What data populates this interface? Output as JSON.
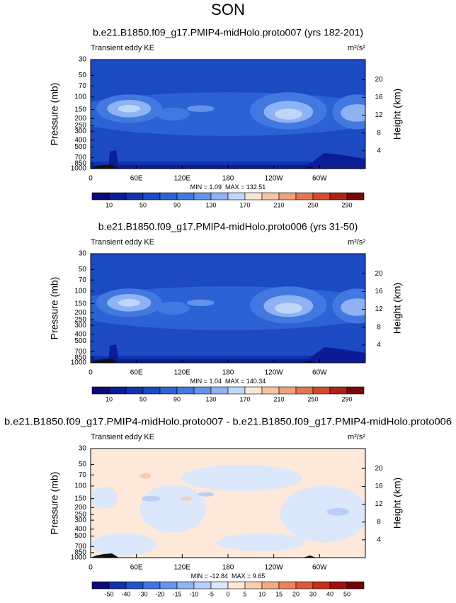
{
  "title": "SON",
  "chart_data": [
    {
      "type": "contour",
      "title": "b.e21.B1850.f09_g17.PMIP4-midHolo.proto007 (yrs 182-201)",
      "subtitle": "Transient eddy KE",
      "units": "m²/s²",
      "ylabel": "Pressure (mb)",
      "y2label": "Height (km)",
      "log_y": true,
      "ylim": [
        1000,
        30
      ],
      "yticks": [
        30,
        50,
        70,
        100,
        150,
        200,
        250,
        300,
        400,
        500,
        700,
        850,
        1000
      ],
      "y2lim": [
        0,
        24.5
      ],
      "y2ticks": [
        4,
        8,
        12,
        16,
        20
      ],
      "xlim": [
        0,
        360
      ],
      "xticks": [
        0,
        {
          "value": 60,
          "label": "60E"
        },
        {
          "value": 120,
          "label": "120E"
        },
        180,
        {
          "value": 240,
          "label": "120W"
        },
        {
          "value": 300,
          "label": "60W"
        }
      ],
      "min_label": "MIN =",
      "min": 1.09,
      "max_label": "MAX =",
      "max": 132.51,
      "colorbar_ticks": [
        10,
        50,
        90,
        130,
        170,
        210,
        250,
        290
      ],
      "colorbar_colors": [
        "#0b0b7a",
        "#0c1c96",
        "#1232ad",
        "#1c4ac2",
        "#2c62d4",
        "#4279e0",
        "#6393ea",
        "#8eb2f3",
        "#c0d6f9",
        "#fbe6d6",
        "#f6c4a2",
        "#f0a07a",
        "#e57550",
        "#d44a2e",
        "#b02218",
        "#7a0808"
      ]
    },
    {
      "type": "contour",
      "title": "b.e21.B1850.f09_g17.PMIP4-midHolo.proto006 (yrs 31-50)",
      "subtitle": "Transient eddy KE",
      "units": "m²/s²",
      "ylabel": "Pressure (mb)",
      "y2label": "Height (km)",
      "log_y": true,
      "ylim": [
        1000,
        30
      ],
      "yticks": [
        30,
        50,
        70,
        100,
        150,
        200,
        250,
        300,
        400,
        500,
        700,
        850,
        1000
      ],
      "y2lim": [
        0,
        24.5
      ],
      "y2ticks": [
        4,
        8,
        12,
        16,
        20
      ],
      "xlim": [
        0,
        360
      ],
      "xticks": [
        0,
        {
          "value": 60,
          "label": "60E"
        },
        {
          "value": 120,
          "label": "120E"
        },
        180,
        {
          "value": 240,
          "label": "120W"
        },
        {
          "value": 300,
          "label": "60W"
        }
      ],
      "min_label": "MIN =",
      "min": 1.04,
      "max_label": "MAX =",
      "max": 140.34,
      "colorbar_ticks": [
        10,
        50,
        90,
        130,
        170,
        210,
        250,
        290
      ],
      "colorbar_colors": [
        "#0b0b7a",
        "#0c1c96",
        "#1232ad",
        "#1c4ac2",
        "#2c62d4",
        "#4279e0",
        "#6393ea",
        "#8eb2f3",
        "#c0d6f9",
        "#fbe6d6",
        "#f6c4a2",
        "#f0a07a",
        "#e57550",
        "#d44a2e",
        "#b02218",
        "#7a0808"
      ]
    },
    {
      "type": "contour",
      "title": "b.e21.B1850.f09_g17.PMIP4-midHolo.proto007 - b.e21.B1850.f09_g17.PMIP4-midHolo.proto006",
      "subtitle": "Transient eddy KE",
      "units": "m²/s²",
      "ylabel": "Pressure (mb)",
      "y2label": "Height (km)",
      "log_y": true,
      "ylim": [
        1000,
        30
      ],
      "yticks": [
        30,
        50,
        70,
        100,
        150,
        200,
        250,
        300,
        400,
        500,
        700,
        850,
        1000
      ],
      "y2lim": [
        0,
        24.5
      ],
      "y2ticks": [
        4,
        8,
        12,
        16,
        20
      ],
      "xlim": [
        0,
        360
      ],
      "xticks": [
        0,
        {
          "value": 60,
          "label": "60E"
        },
        {
          "value": 120,
          "label": "120E"
        },
        180,
        {
          "value": 240,
          "label": "120W"
        },
        {
          "value": 300,
          "label": "60W"
        }
      ],
      "min_label": "MIN =",
      "min": -12.84,
      "max_label": "MAX =",
      "max": 9.65,
      "colorbar_ticks": [
        -50,
        -40,
        -30,
        -20,
        -15,
        -10,
        -5,
        0,
        5,
        10,
        15,
        20,
        30,
        40,
        50
      ],
      "colorbar_colors": [
        "#0b0b7a",
        "#1230a8",
        "#2552c8",
        "#4374dc",
        "#6994e8",
        "#92b3f1",
        "#b9cff7",
        "#dbe7fb",
        "#fde8da",
        "#f9cdb0",
        "#f3ab86",
        "#ea8560",
        "#dc5a3a",
        "#c5301e",
        "#a01010",
        "#700505"
      ]
    }
  ]
}
